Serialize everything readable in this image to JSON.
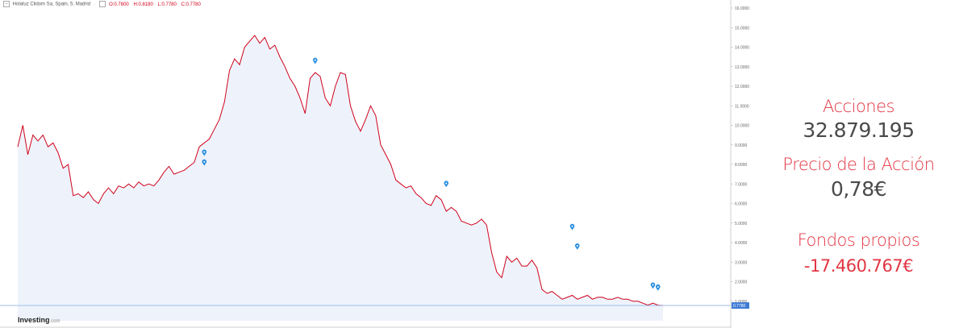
{
  "header": {
    "instrument": "Holaluz Clidom Sa, Spain, 5, Madrid",
    "open": "O:0.7800",
    "high": "H:0.8180",
    "low": "L:0.7780",
    "close": "C:0.7780"
  },
  "brand": {
    "name": "Investing",
    "suffix": ".com"
  },
  "stats": {
    "shares_label": "Acciones",
    "shares_value": "32.879.195",
    "price_label": "Precio de la Acción",
    "price_value": "0,78€",
    "equity_label": "Fondos propios",
    "equity_value": "-17.460.767€"
  },
  "colors": {
    "line": "#d0021b",
    "accent": "#e23542",
    "marker": "#2a8fe0",
    "area": "#eef3fb"
  },
  "chart_data": {
    "type": "line",
    "title": "",
    "xlabel": "",
    "ylabel": "",
    "ylim": [
      0,
      16
    ],
    "yticks": [
      "1.0000",
      "2.0000",
      "3.0000",
      "4.0000",
      "5.0000",
      "6.0000",
      "7.0000",
      "8.0000",
      "9.0000",
      "10.0000",
      "11.0000",
      "12.0000",
      "13.0000",
      "14.0000",
      "15.0000",
      "16.0000"
    ],
    "last_price_label": "0.7780",
    "grid": false,
    "series": [
      {
        "values": [
          8.9,
          10.0,
          8.5,
          9.5,
          9.2,
          9.5,
          8.9,
          9.1,
          8.6,
          7.8,
          8.0,
          6.4,
          6.5,
          6.3,
          6.6,
          6.2,
          6.0,
          6.5,
          6.8,
          6.5,
          6.9,
          6.8,
          7.0,
          6.8,
          7.1,
          6.9,
          7.0,
          6.9,
          7.2,
          7.6,
          7.9,
          7.5,
          7.6,
          7.7,
          7.9,
          8.1,
          8.9,
          9.1,
          9.3,
          9.8,
          10.3,
          11.2,
          12.8,
          13.4,
          13.1,
          14.0,
          14.3,
          14.6,
          14.2,
          14.5,
          13.9,
          14.1,
          13.5,
          13.0,
          12.4,
          12.0,
          11.4,
          10.6,
          12.4,
          12.7,
          12.5,
          11.4,
          11.0,
          12.0,
          12.7,
          12.6,
          11.0,
          10.2,
          9.7,
          10.3,
          11.0,
          10.5,
          9.0,
          8.5,
          8.0,
          7.2,
          7.0,
          6.8,
          6.9,
          6.5,
          6.3,
          6.0,
          5.9,
          6.4,
          6.2,
          5.6,
          5.8,
          5.6,
          5.1,
          5.0,
          4.9,
          5.0,
          5.2,
          4.9,
          3.5,
          2.5,
          2.2,
          3.3,
          3.0,
          3.2,
          2.8,
          2.8,
          3.1,
          2.7,
          1.6,
          1.4,
          1.5,
          1.3,
          1.1,
          1.2,
          1.3,
          1.1,
          1.2,
          1.3,
          1.1,
          1.2,
          1.2,
          1.1,
          1.1,
          1.2,
          1.1,
          1.1,
          1.0,
          1.0,
          0.9,
          0.8,
          0.9,
          0.8,
          0.78
        ]
      }
    ],
    "event_markers": [
      {
        "index": 37,
        "value": 8.6
      },
      {
        "index": 37,
        "value": 8.1
      },
      {
        "index": 59,
        "value": 13.3
      },
      {
        "index": 85,
        "value": 7.0
      },
      {
        "index": 110,
        "value": 4.8
      },
      {
        "index": 111,
        "value": 3.8
      },
      {
        "index": 126,
        "value": 1.8
      },
      {
        "index": 127,
        "value": 1.7
      }
    ]
  }
}
